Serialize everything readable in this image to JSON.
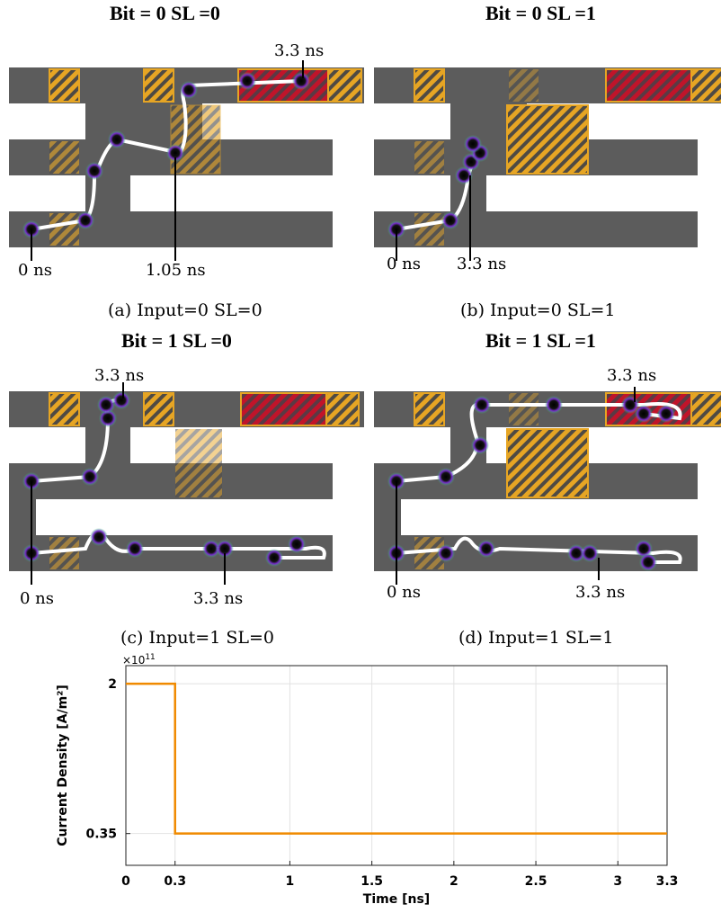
{
  "panels": [
    {
      "title": "Bit = 0 SL =0",
      "caption": "(a) Input=0 SL=0",
      "annotations": [
        "0 ns",
        "1.05 ns",
        "3.3 ns"
      ]
    },
    {
      "title": "Bit = 0 SL =1",
      "caption": "(b) Input=0 SL=1",
      "annotations": [
        "0 ns",
        "3.3 ns"
      ]
    },
    {
      "title": "Bit = 1 SL =0",
      "caption": "(c) Input=1 SL=0",
      "annotations": [
        "0 ns",
        "3.3 ns",
        "3.3 ns"
      ]
    },
    {
      "title": "Bit = 1 SL =1",
      "caption": "(d) Input=1 SL=1",
      "annotations": [
        "0 ns",
        "3.3 ns",
        "3.3 ns"
      ]
    }
  ],
  "colors": {
    "track": "#5a5a5a",
    "hatch_gold": "#e0a82a",
    "hatch_red": "#b8142c",
    "path": "#ffffff",
    "plot_line": "#f08a00"
  },
  "chart_data": {
    "type": "line",
    "xlabel": "Time [ns]",
    "ylabel": "Current Density [A/m²]",
    "exponent_label": "×10",
    "exponent_power": "11",
    "xlim": [
      0,
      3.3
    ],
    "ylim": [
      0,
      2.2
    ],
    "xticks": [
      0,
      0.3,
      1,
      1.5,
      2,
      2.5,
      3,
      3.3
    ],
    "xtick_labels": [
      "0",
      "0.3",
      "1",
      "1.5",
      "2",
      "2.5",
      "3",
      "3.3"
    ],
    "yticks": [
      0.35,
      2
    ],
    "ytick_labels": [
      "0.35",
      "2"
    ],
    "grid": true,
    "series": [
      {
        "x": [
          0,
          0.3,
          0.3,
          3.3
        ],
        "y": [
          2,
          2,
          0.35,
          0.35
        ]
      }
    ]
  }
}
